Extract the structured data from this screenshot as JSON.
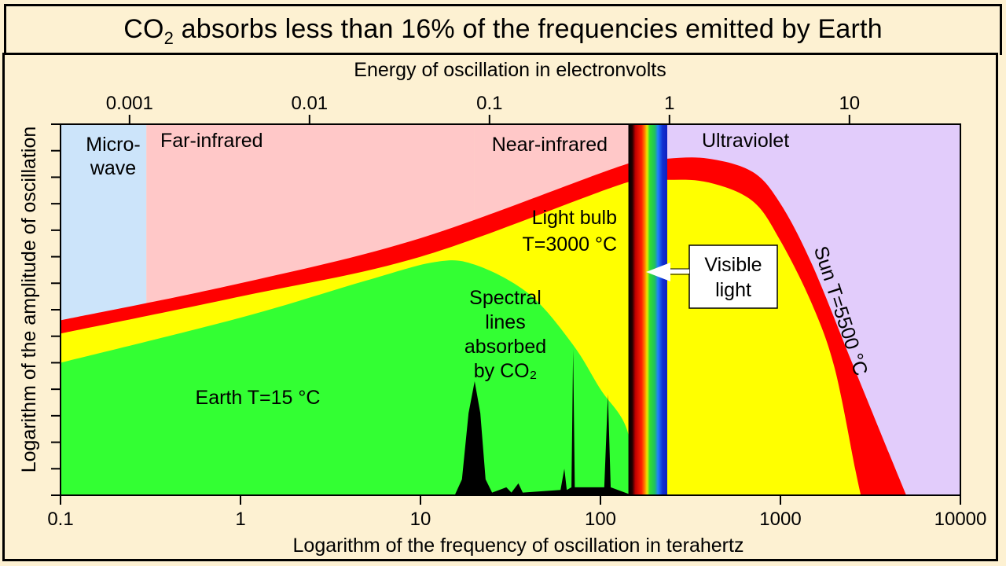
{
  "title": {
    "prefix": "CO",
    "subscript": "2",
    "suffix": " absorbs less than 16% of the frequencies emitted by Earth"
  },
  "chart_data": {
    "type": "area",
    "title": "CO2 absorbs less than 16% of the frequencies emitted by Earth",
    "xlabel": "Logarithm of the frequency of oscillation in terahertz",
    "x2label": "Energy of oscillation in electronvolts",
    "ylabel": "Logarithm of the amplitude of oscillation",
    "xscale": "log",
    "xlim": [
      0.1,
      10000
    ],
    "x_ticks": [
      0.1,
      1,
      10,
      100,
      1000,
      10000
    ],
    "x_tick_labels": [
      "0.1",
      "1",
      "10",
      "100",
      "1000",
      "10000"
    ],
    "x2_ticks_ev": [
      0.001,
      0.01,
      0.1,
      1,
      10
    ],
    "x2_tick_labels": [
      "0.001",
      "0.01",
      "0.1",
      "1",
      "10"
    ],
    "ev_per_thz": 0.004136,
    "y_units": "arbitrary (log amplitude)",
    "ylim": [
      0,
      14
    ],
    "y_tick_count": 15,
    "y_tick_labels": [],
    "regions": [
      {
        "name": "Micro-\nwave",
        "lines": [
          "Micro-",
          "wave"
        ],
        "from_thz": 0.1,
        "to_thz": 0.3,
        "color": "#cce4fa"
      },
      {
        "name": "Far-infrared",
        "lines": [
          "Far-infrared"
        ],
        "from_thz": 0.3,
        "to_thz": 20,
        "color": "#ffc8c8"
      },
      {
        "name": "Near-infrared",
        "lines": [
          "Near-infrared"
        ],
        "from_thz": 20,
        "to_thz": 143,
        "color": "#ffc8c8"
      },
      {
        "name": "Visible",
        "lines": [],
        "from_thz": 143,
        "to_thz": 235,
        "color": "spectrum"
      },
      {
        "name": "Ultraviolet",
        "lines": [
          "Ultraviolet"
        ],
        "from_thz": 235,
        "to_thz": 10000,
        "color": "#e2ccfb"
      }
    ],
    "series": [
      {
        "name": "Sun T=5500 °C",
        "color": "#ff0000",
        "points": [
          [
            0.1,
            6.6
          ],
          [
            1,
            8.0
          ],
          [
            10,
            9.7
          ],
          [
            140,
            12.5
          ],
          [
            235,
            12.7
          ],
          [
            400,
            12.7
          ],
          [
            700,
            12.2
          ],
          [
            1000,
            11.0
          ],
          [
            1500,
            8.7
          ],
          [
            2500,
            5.0
          ],
          [
            4000,
            1.6
          ],
          [
            5000,
            0
          ]
        ]
      },
      {
        "name": "Light bulb T=3000 °C",
        "color": "#ffff00",
        "points": [
          [
            0.1,
            6.1
          ],
          [
            1,
            7.5
          ],
          [
            10,
            9.0
          ],
          [
            140,
            11.8
          ],
          [
            235,
            11.9
          ],
          [
            400,
            11.8
          ],
          [
            700,
            11.1
          ],
          [
            1000,
            9.6
          ],
          [
            1500,
            7.2
          ],
          [
            2000,
            4.8
          ],
          [
            2600,
            1.0
          ],
          [
            2800,
            0
          ]
        ]
      },
      {
        "name": "Earth T=15 °C",
        "color": "#33ff33",
        "points": [
          [
            0.1,
            5.0
          ],
          [
            1,
            6.7
          ],
          [
            5,
            8.1
          ],
          [
            12,
            8.8
          ],
          [
            20,
            8.7
          ],
          [
            40,
            7.6
          ],
          [
            70,
            5.7
          ],
          [
            100,
            4.0
          ],
          [
            140,
            2.5
          ],
          [
            160,
            0
          ]
        ]
      },
      {
        "name": "Spectral lines absorbed by CO2",
        "color": "#000000",
        "points": [
          [
            15.5,
            0
          ],
          [
            17,
            0.6
          ],
          [
            18.5,
            3.1
          ],
          [
            20,
            4.3
          ],
          [
            21.5,
            3.1
          ],
          [
            23,
            0.6
          ],
          [
            25,
            0.1
          ],
          [
            30,
            0.3
          ],
          [
            32,
            0.1
          ],
          [
            35,
            0.45
          ],
          [
            37,
            0.1
          ],
          [
            60,
            0.2
          ],
          [
            63,
            1.0
          ],
          [
            65,
            0.2
          ],
          [
            69,
            0.3
          ],
          [
            70.5,
            5.5
          ],
          [
            72,
            0.3
          ],
          [
            105,
            0.3
          ],
          [
            110,
            3.8
          ],
          [
            114,
            0.3
          ],
          [
            150,
            0
          ]
        ]
      }
    ],
    "annotations": [
      {
        "text_lines": [
          "Light bulb",
          "T=3000 °C"
        ]
      },
      {
        "text_lines": [
          "Spectral",
          "lines",
          "absorbed",
          "by CO₂"
        ]
      },
      {
        "text_lines": [
          "Earth T=15 °C"
        ]
      },
      {
        "text_lines": [
          "Sun T=5500 °C"
        ]
      },
      {
        "text_lines": [
          "Visible",
          "light"
        ],
        "arrow_to": "visible band"
      }
    ],
    "legend": "none (labels inline)",
    "grid": false
  }
}
